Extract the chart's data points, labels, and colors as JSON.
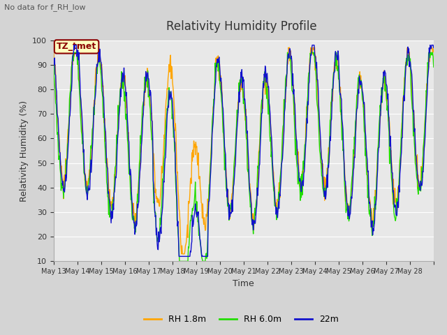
{
  "title": "Relativity Humidity Profile",
  "subtitle": "No data for f_RH_low",
  "xlabel": "Time",
  "ylabel": "Relativity Humidity (%)",
  "ylim": [
    10,
    100
  ],
  "yticks": [
    10,
    20,
    30,
    40,
    50,
    60,
    70,
    80,
    90,
    100
  ],
  "fig_bg_color": "#d4d4d4",
  "plot_bg_color": "#e8e8e8",
  "grid_color": "#ffffff",
  "line_colors": {
    "RH 1.8m": "#FFA500",
    "RH 6.0m": "#22DD00",
    "22m": "#1111CC"
  },
  "legend_label": "TZ_tmet",
  "legend_box_facecolor": "#FFFFC0",
  "legend_box_edgecolor": "#8B0000",
  "x_tick_labels": [
    "May 13",
    "May 14",
    "May 15",
    "May 16",
    "May 17",
    "May 18",
    "May 19",
    "May 20",
    "May 21",
    "May 22",
    "May 23",
    "May 24",
    "May 25",
    "May 26",
    "May 27",
    "May 28"
  ],
  "num_days": 16,
  "seed": 0
}
